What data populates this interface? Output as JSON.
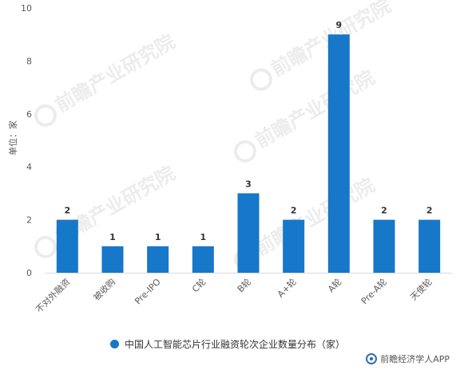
{
  "chart_data": {
    "type": "bar",
    "categories": [
      "不对外融资",
      "被收购",
      "Pre-IPO",
      "C轮",
      "B轮",
      "A+轮",
      "A轮",
      "Pre-A轮",
      "天使轮"
    ],
    "series": [
      {
        "name": "中国人工智能芯片行业融资轮次企业数量分布（家）",
        "values": [
          2,
          1,
          1,
          1,
          3,
          2,
          9,
          2,
          2
        ]
      }
    ],
    "ylabel": "单位：家",
    "ylim": [
      0,
      10
    ],
    "yticks": [
      0,
      2,
      4,
      6,
      8,
      10
    ],
    "grid": false,
    "legend_position": "bottom",
    "colors": {
      "bar": "#1777c8",
      "axis": "#d9d9d9",
      "text": "#595959"
    }
  },
  "watermark": {
    "brand": "前瞻产业研究院"
  },
  "footer": {
    "source": "前瞻经济学人APP"
  }
}
